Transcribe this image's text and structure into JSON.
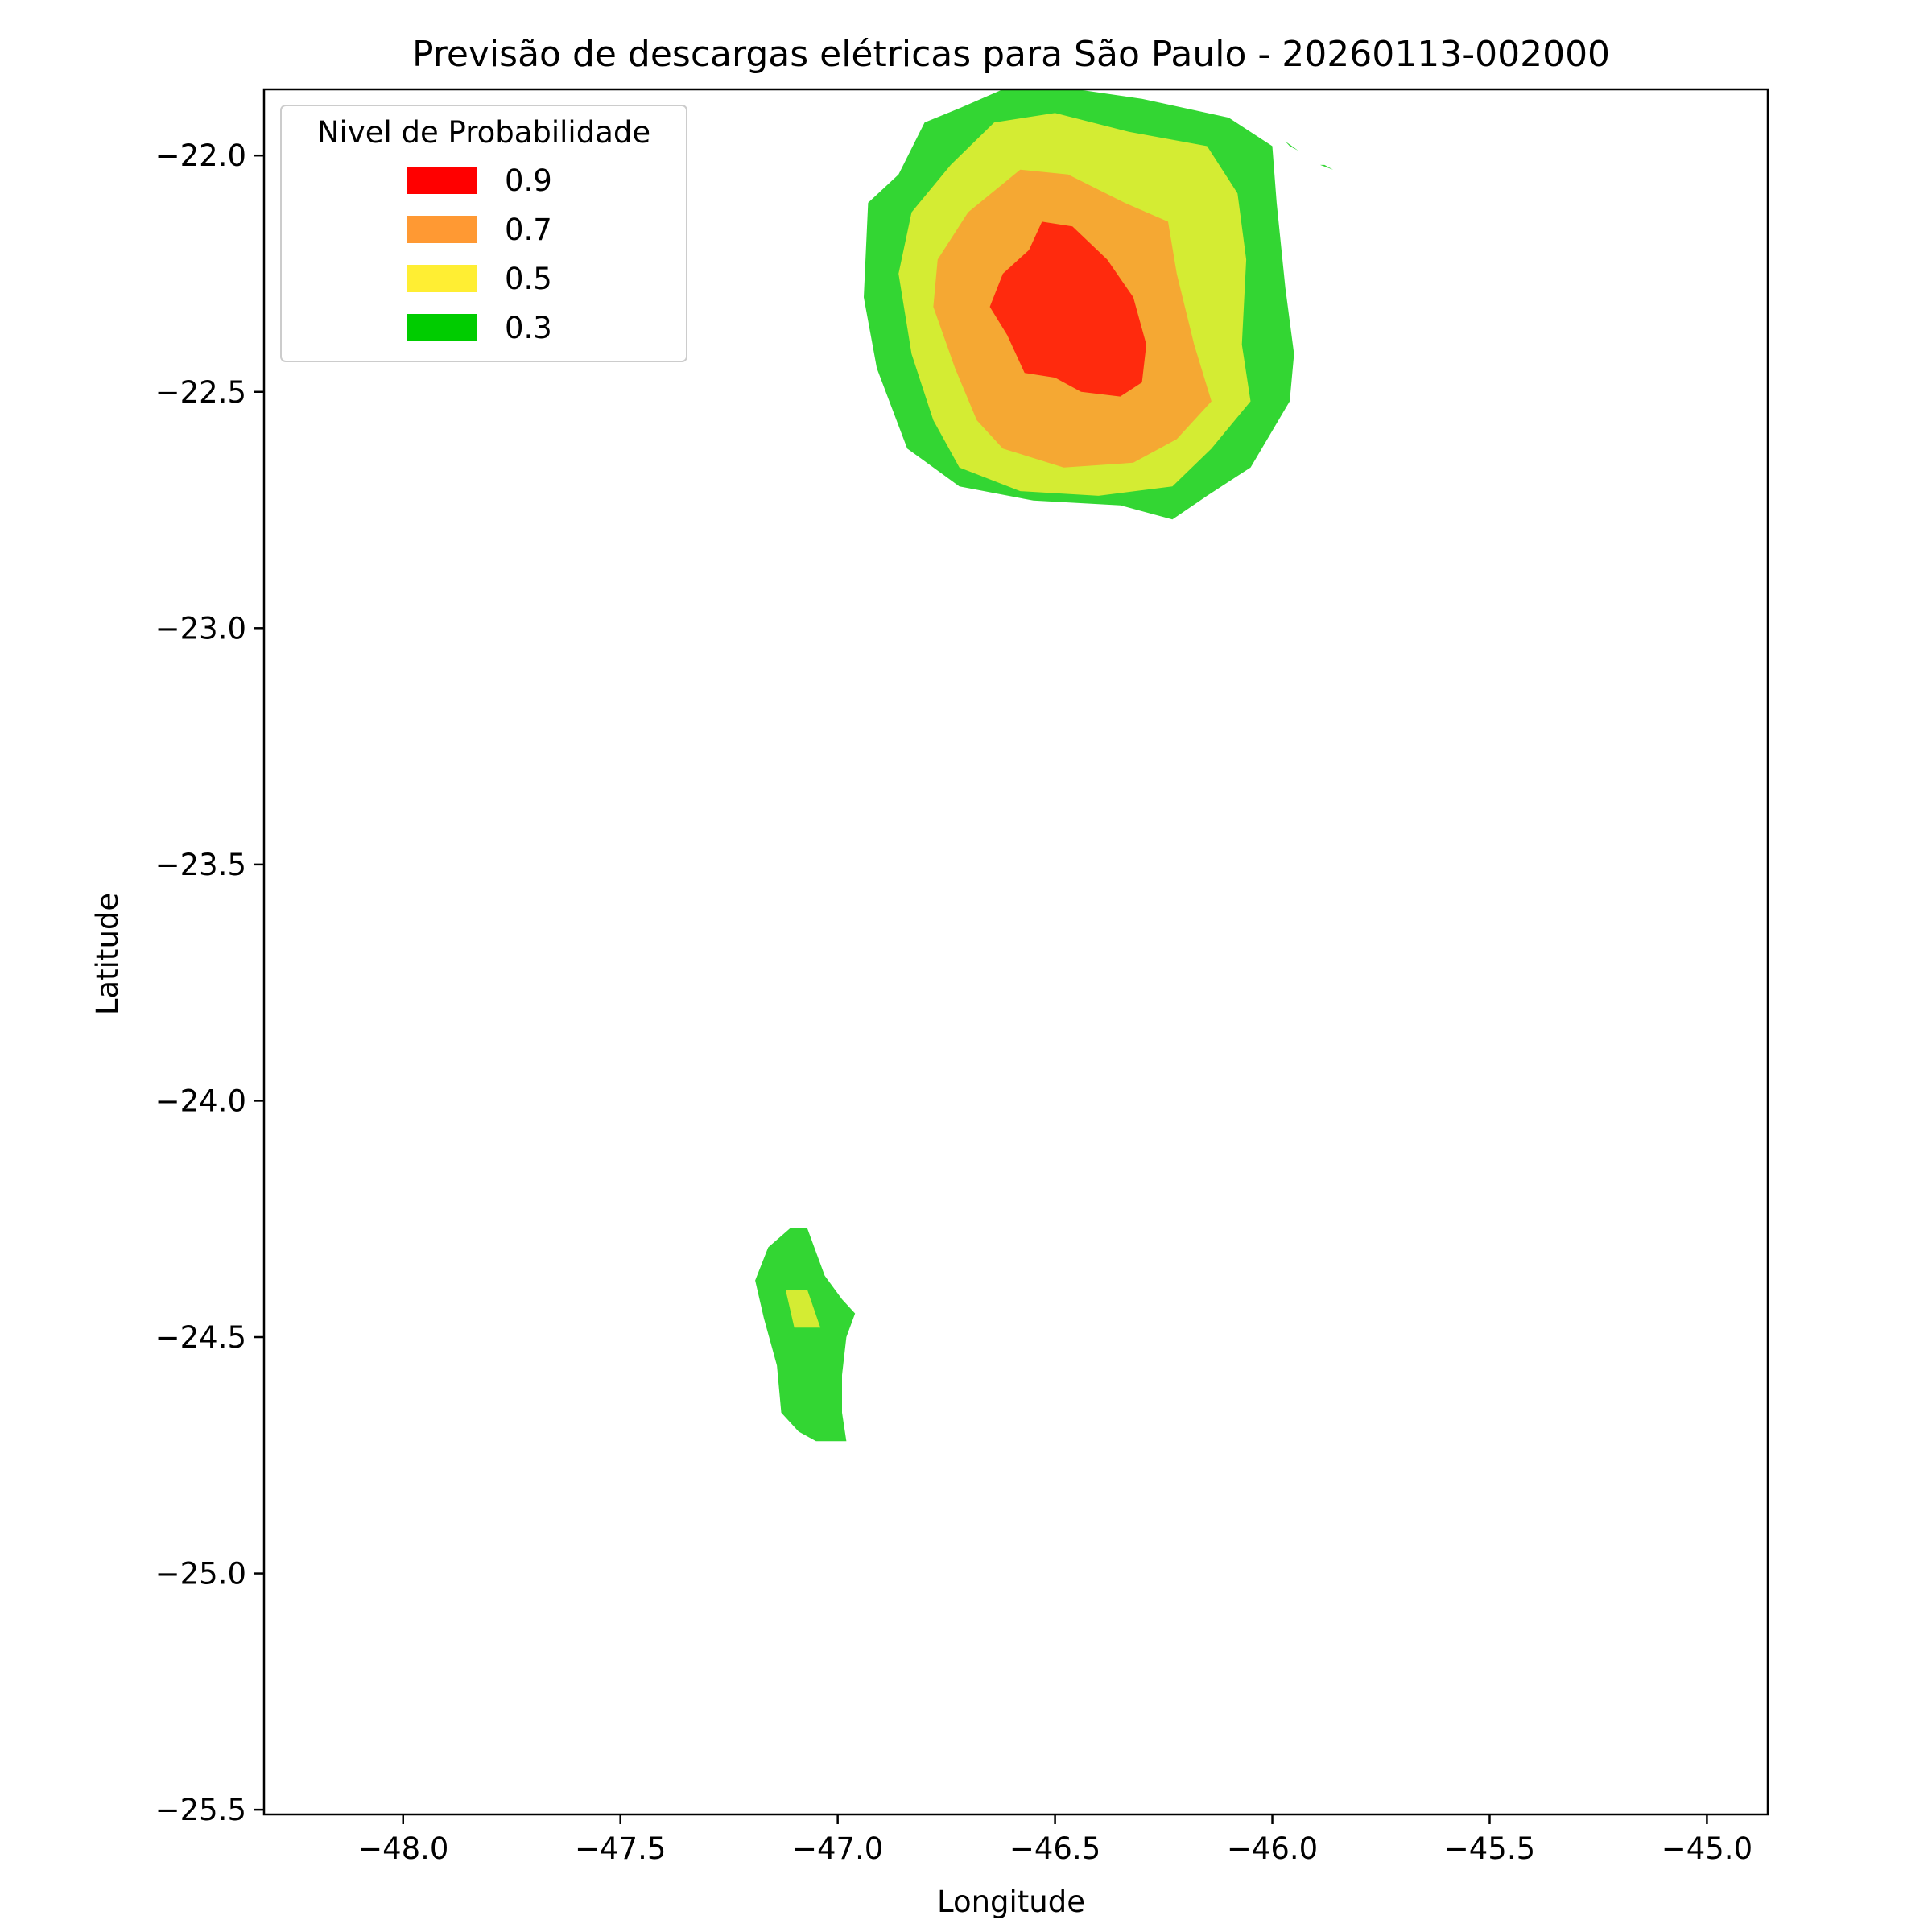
{
  "chart_data": {
    "type": "contour",
    "title": "Previsão de descargas elétricas para São Paulo - 20260113-002000",
    "xlabel": "Longitude",
    "ylabel": "Latitude",
    "xlim": [
      -48.32,
      -44.86
    ],
    "ylim": [
      -25.51,
      -21.86
    ],
    "x_ticks": [
      -48.0,
      -47.5,
      -47.0,
      -46.5,
      -46.0,
      -45.5,
      -45.0
    ],
    "x_tick_labels": [
      "−48.0",
      "−47.5",
      "−47.0",
      "−46.5",
      "−46.0",
      "−45.5",
      "−45.0"
    ],
    "y_ticks": [
      -22.0,
      -22.5,
      -23.0,
      -23.5,
      -24.0,
      -24.5,
      -25.0,
      -25.5
    ],
    "y_tick_labels": [
      "−22.0",
      "−22.5",
      "−23.0",
      "−23.5",
      "−24.0",
      "−24.5",
      "−25.0",
      "−25.5"
    ],
    "legend": {
      "title": "Nivel de Probabilidade",
      "placement": "upper-left",
      "items": [
        {
          "label": "0.9",
          "color": "#ff0000"
        },
        {
          "label": "0.7",
          "color": "#ff9933"
        },
        {
          "label": "0.5",
          "color": "#ffee33"
        },
        {
          "label": "0.3",
          "color": "#00cc00"
        }
      ]
    },
    "levels": [
      {
        "level": 0.3,
        "color": "#33d633",
        "regions": [
          [
            [
              -46.72,
              -21.9
            ],
            [
              -46.62,
              -21.86
            ],
            [
              -46.45,
              -21.86
            ],
            [
              -46.3,
              -21.88
            ],
            [
              -46.1,
              -21.92
            ],
            [
              -46.0,
              -21.98
            ],
            [
              -45.99,
              -22.1
            ],
            [
              -45.97,
              -22.28
            ],
            [
              -45.95,
              -22.42
            ],
            [
              -45.96,
              -22.52
            ],
            [
              -46.05,
              -22.66
            ],
            [
              -46.15,
              -22.72
            ],
            [
              -46.23,
              -22.77
            ],
            [
              -46.35,
              -22.74
            ],
            [
              -46.55,
              -22.73
            ],
            [
              -46.72,
              -22.7
            ],
            [
              -46.84,
              -22.62
            ],
            [
              -46.91,
              -22.45
            ],
            [
              -46.94,
              -22.3
            ],
            [
              -46.93,
              -22.1
            ],
            [
              -46.86,
              -22.04
            ],
            [
              -46.8,
              -21.93
            ]
          ],
          [
            [
              -47.11,
              -24.27
            ],
            [
              -47.07,
              -24.27
            ],
            [
              -47.03,
              -24.37
            ],
            [
              -46.99,
              -24.42
            ],
            [
              -46.96,
              -24.45
            ],
            [
              -46.98,
              -24.5
            ],
            [
              -46.99,
              -24.58
            ],
            [
              -46.99,
              -24.66
            ],
            [
              -46.98,
              -24.72
            ],
            [
              -47.05,
              -24.72
            ],
            [
              -47.09,
              -24.7
            ],
            [
              -47.13,
              -24.66
            ],
            [
              -47.14,
              -24.56
            ],
            [
              -47.17,
              -24.46
            ],
            [
              -47.19,
              -24.38
            ],
            [
              -47.16,
              -24.31
            ]
          ],
          [
            [
              -45.97,
              -21.97
            ],
            [
              -45.94,
              -21.99
            ],
            [
              -45.96,
              -21.98
            ]
          ],
          [
            [
              -45.89,
              -22.02
            ],
            [
              -45.86,
              -22.03
            ],
            [
              -45.88,
              -22.02
            ]
          ]
        ]
      },
      {
        "level": 0.5,
        "color": "#d4ec33",
        "regions": [
          [
            [
              -46.64,
              -21.93
            ],
            [
              -46.5,
              -21.91
            ],
            [
              -46.33,
              -21.95
            ],
            [
              -46.15,
              -21.98
            ],
            [
              -46.08,
              -22.08
            ],
            [
              -46.06,
              -22.22
            ],
            [
              -46.07,
              -22.4
            ],
            [
              -46.05,
              -22.52
            ],
            [
              -46.14,
              -22.62
            ],
            [
              -46.23,
              -22.7
            ],
            [
              -46.4,
              -22.72
            ],
            [
              -46.58,
              -22.71
            ],
            [
              -46.72,
              -22.66
            ],
            [
              -46.78,
              -22.56
            ],
            [
              -46.83,
              -22.42
            ],
            [
              -46.86,
              -22.25
            ],
            [
              -46.83,
              -22.12
            ],
            [
              -46.74,
              -22.02
            ]
          ],
          [
            [
              -47.12,
              -24.4
            ],
            [
              -47.07,
              -24.4
            ],
            [
              -47.04,
              -24.48
            ],
            [
              -47.1,
              -24.48
            ]
          ]
        ]
      },
      {
        "level": 0.7,
        "color": "#f5a833",
        "regions": [
          [
            [
              -46.58,
              -22.03
            ],
            [
              -46.47,
              -22.04
            ],
            [
              -46.34,
              -22.1
            ],
            [
              -46.24,
              -22.14
            ],
            [
              -46.22,
              -22.25
            ],
            [
              -46.18,
              -22.4
            ],
            [
              -46.14,
              -22.52
            ],
            [
              -46.22,
              -22.6
            ],
            [
              -46.32,
              -22.65
            ],
            [
              -46.48,
              -22.66
            ],
            [
              -46.62,
              -22.62
            ],
            [
              -46.68,
              -22.56
            ],
            [
              -46.73,
              -22.45
            ],
            [
              -46.78,
              -22.32
            ],
            [
              -46.77,
              -22.22
            ],
            [
              -46.7,
              -22.12
            ]
          ]
        ]
      },
      {
        "level": 0.9,
        "color": "#ff2a0d",
        "regions": [
          [
            [
              -46.53,
              -22.14
            ],
            [
              -46.46,
              -22.15
            ],
            [
              -46.38,
              -22.22
            ],
            [
              -46.32,
              -22.3
            ],
            [
              -46.29,
              -22.4
            ],
            [
              -46.3,
              -22.48
            ],
            [
              -46.35,
              -22.51
            ],
            [
              -46.44,
              -22.5
            ],
            [
              -46.5,
              -22.47
            ],
            [
              -46.57,
              -22.46
            ],
            [
              -46.61,
              -22.38
            ],
            [
              -46.65,
              -22.32
            ],
            [
              -46.62,
              -22.25
            ],
            [
              -46.56,
              -22.2
            ]
          ]
        ]
      }
    ]
  }
}
